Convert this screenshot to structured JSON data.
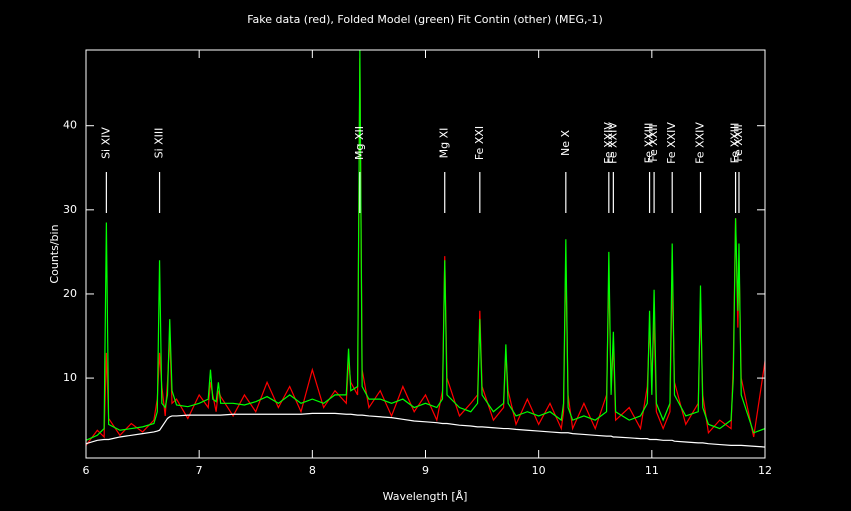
{
  "chart_data": {
    "type": "line",
    "title": "Fake data (red), Folded Model (green) Fit Contin (other) (MEG,-1)",
    "xlabel": "Wavelength [Å]",
    "ylabel": "Counts/bin",
    "xlim": [
      6,
      12
    ],
    "xticks": [
      6,
      7,
      8,
      9,
      10,
      11,
      12
    ],
    "ylim": [
      0.5,
      49
    ],
    "yticks": [
      10,
      20,
      30,
      40
    ],
    "x": [
      6.0,
      6.1,
      6.16,
      6.18,
      6.2,
      6.3,
      6.4,
      6.5,
      6.6,
      6.63,
      6.65,
      6.67,
      6.7,
      6.72,
      6.74,
      6.76,
      6.8,
      6.9,
      7.0,
      7.08,
      7.1,
      7.12,
      7.15,
      7.17,
      7.19,
      7.3,
      7.4,
      7.5,
      7.6,
      7.7,
      7.8,
      7.9,
      8.0,
      8.1,
      8.2,
      8.3,
      8.32,
      8.34,
      8.4,
      8.42,
      8.44,
      8.5,
      8.6,
      8.7,
      8.8,
      8.9,
      9.0,
      9.1,
      9.15,
      9.17,
      9.19,
      9.3,
      9.4,
      9.46,
      9.48,
      9.5,
      9.6,
      9.69,
      9.71,
      9.73,
      9.8,
      9.9,
      10.0,
      10.1,
      10.2,
      10.22,
      10.24,
      10.26,
      10.3,
      10.4,
      10.5,
      10.6,
      10.62,
      10.64,
      10.66,
      10.68,
      10.8,
      10.9,
      10.96,
      10.98,
      11.0,
      11.02,
      11.04,
      11.1,
      11.16,
      11.18,
      11.2,
      11.3,
      11.41,
      11.43,
      11.45,
      11.5,
      11.6,
      11.7,
      11.72,
      11.74,
      11.76,
      11.77,
      11.79,
      11.9,
      12.0
    ],
    "series": [
      {
        "color": "#ff0000",
        "values": [
          2.0,
          3.8,
          3.0,
          13.0,
          5.2,
          3.2,
          4.6,
          3.6,
          5.0,
          7.5,
          13.0,
          9.0,
          5.5,
          9.5,
          15.0,
          7.0,
          7.5,
          5.2,
          8.0,
          6.5,
          9.5,
          8.0,
          6.0,
          8.5,
          7.8,
          5.5,
          8.0,
          6.0,
          9.5,
          6.5,
          9.0,
          6.0,
          11.0,
          6.5,
          8.5,
          7.0,
          12.0,
          9.5,
          8.0,
          48.0,
          11.0,
          6.5,
          8.5,
          5.5,
          9.0,
          6.0,
          8.0,
          5.0,
          8.5,
          24.5,
          10.0,
          5.5,
          7.0,
          8.0,
          18.0,
          9.0,
          5.0,
          6.5,
          13.0,
          8.5,
          4.5,
          7.5,
          4.5,
          7.0,
          4.0,
          6.0,
          24.0,
          8.0,
          4.0,
          7.0,
          4.0,
          8.0,
          22.0,
          9.0,
          14.0,
          5.0,
          6.5,
          4.0,
          9.0,
          16.0,
          10.0,
          17.0,
          6.0,
          4.0,
          6.0,
          22.0,
          9.5,
          4.5,
          7.0,
          19.0,
          8.0,
          3.5,
          5.0,
          4.0,
          12.0,
          29.0,
          16.0,
          24.0,
          10.0,
          3.0,
          12.0
        ]
      },
      {
        "color": "#00ff00",
        "values": [
          2.6,
          3.2,
          4.0,
          28.5,
          4.5,
          3.8,
          4.0,
          4.2,
          4.6,
          6.0,
          24.0,
          7.0,
          6.5,
          8.0,
          17.0,
          8.5,
          6.8,
          6.6,
          7.0,
          7.5,
          11.0,
          7.5,
          7.2,
          9.5,
          7.0,
          7.0,
          6.8,
          7.2,
          7.8,
          7.0,
          8.0,
          7.0,
          7.5,
          7.0,
          8.0,
          8.0,
          13.5,
          8.5,
          9.0,
          49.0,
          9.0,
          7.5,
          7.5,
          7.0,
          7.5,
          6.5,
          7.0,
          6.5,
          7.5,
          24.0,
          8.0,
          6.5,
          6.0,
          7.0,
          17.0,
          8.0,
          6.0,
          7.0,
          14.0,
          7.0,
          5.5,
          6.0,
          5.5,
          6.0,
          5.0,
          7.0,
          26.5,
          6.5,
          5.0,
          5.5,
          5.0,
          6.0,
          25.0,
          8.0,
          15.5,
          6.0,
          5.0,
          5.5,
          7.0,
          18.0,
          8.0,
          20.5,
          7.0,
          5.0,
          7.0,
          26.0,
          8.0,
          5.5,
          6.0,
          21.0,
          6.5,
          4.5,
          4.0,
          5.0,
          10.0,
          29.0,
          18.0,
          26.0,
          8.0,
          3.5,
          4.0
        ]
      },
      {
        "color": "#ffffff",
        "values": [
          2.2,
          2.6,
          2.7,
          2.7,
          2.7,
          3.0,
          3.2,
          3.4,
          3.6,
          3.7,
          3.8,
          4.2,
          4.8,
          5.2,
          5.4,
          5.5,
          5.5,
          5.6,
          5.6,
          5.6,
          5.6,
          5.6,
          5.6,
          5.6,
          5.6,
          5.7,
          5.7,
          5.7,
          5.7,
          5.7,
          5.7,
          5.7,
          5.8,
          5.8,
          5.8,
          5.7,
          5.7,
          5.7,
          5.6,
          5.6,
          5.6,
          5.5,
          5.4,
          5.3,
          5.1,
          4.9,
          4.8,
          4.7,
          4.6,
          4.6,
          4.6,
          4.4,
          4.3,
          4.2,
          4.2,
          4.2,
          4.1,
          4.0,
          4.0,
          4.0,
          3.9,
          3.8,
          3.7,
          3.6,
          3.5,
          3.5,
          3.5,
          3.5,
          3.4,
          3.3,
          3.2,
          3.1,
          3.1,
          3.1,
          3.0,
          3.0,
          2.9,
          2.8,
          2.8,
          2.7,
          2.7,
          2.7,
          2.7,
          2.6,
          2.6,
          2.6,
          2.5,
          2.4,
          2.3,
          2.3,
          2.3,
          2.2,
          2.1,
          2.0,
          2.0,
          2.0,
          2.0,
          2.0,
          2.0,
          1.9,
          1.8
        ]
      }
    ],
    "annotations": [
      {
        "x": 6.18,
        "label": "Si XIV"
      },
      {
        "x": 6.65,
        "label": "Si XIII"
      },
      {
        "x": 8.42,
        "label": "Mg XII"
      },
      {
        "x": 9.17,
        "label": "Mg XI"
      },
      {
        "x": 9.48,
        "label": "Fe XXI"
      },
      {
        "x": 10.24,
        "label": "Ne X"
      },
      {
        "x": 10.62,
        "label": "Fe XXIV"
      },
      {
        "x": 10.66,
        "label": "Fe XXIV"
      },
      {
        "x": 10.98,
        "label": "Fe XXIII"
      },
      {
        "x": 11.02,
        "label": "Fe XXII"
      },
      {
        "x": 11.18,
        "label": "Fe XXIV"
      },
      {
        "x": 11.43,
        "label": "Fe XXIV"
      },
      {
        "x": 11.74,
        "label": "Fe XXIII"
      },
      {
        "x": 11.77,
        "label": "Fe XXII"
      }
    ]
  }
}
